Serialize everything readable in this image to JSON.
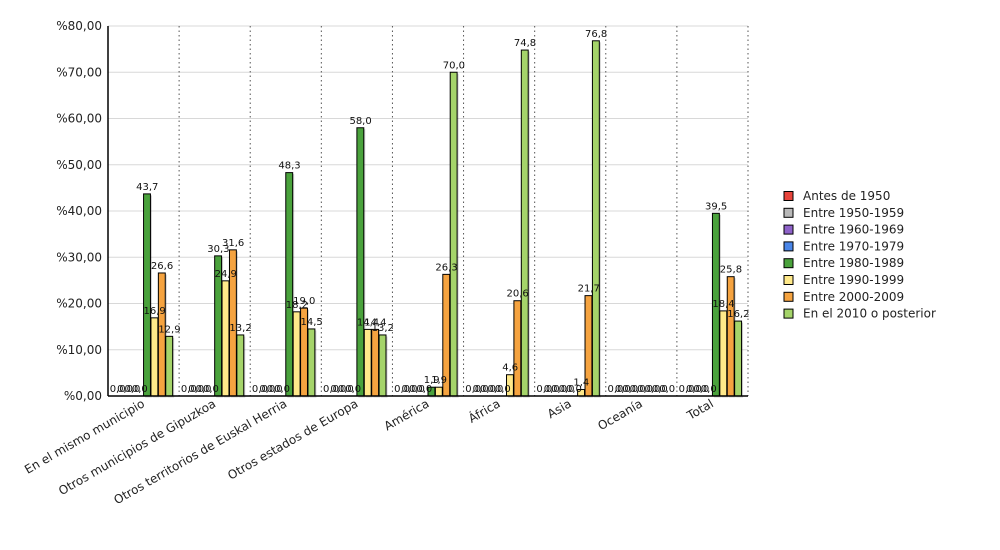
{
  "chart_data": {
    "type": "bar",
    "title": "",
    "xlabel": "",
    "ylabel": "",
    "ylim": [
      0,
      80
    ],
    "yticks": [
      "%0,00",
      "%10,00",
      "%20,00",
      "%30,00",
      "%40,00",
      "%50,00",
      "%60,00",
      "%70,00",
      "%80,00"
    ],
    "grid": true,
    "legend_position": "right",
    "categories": [
      "En el mismo municipio",
      "Otros municipios de Gipuzkoa",
      "Otros territorios de Euskal Herria",
      "Otros estados de Europa",
      "América",
      "África",
      "Asia",
      "Oceanía",
      "Total"
    ],
    "series": [
      {
        "name": "Antes de 1950",
        "color": "#e8453c",
        "values": [
          0.0,
          0.0,
          0.0,
          0.0,
          0.0,
          0.0,
          0.0,
          0.0,
          0.0
        ],
        "labels": [
          "0,0",
          "0,0",
          "0,0",
          "0,0",
          "0,0",
          "0,0",
          "0,0",
          "0,0",
          "0,0"
        ]
      },
      {
        "name": "Entre 1950-1959",
        "color": "#b9b9b9",
        "values": [
          0.0,
          0.0,
          0.0,
          0.0,
          0.0,
          0.0,
          0.0,
          0.0,
          0.0
        ],
        "labels": [
          "0,0",
          "0,0",
          "0,0",
          "0,0",
          "0,0",
          "0,0",
          "0,0",
          "0,0",
          "0,0"
        ]
      },
      {
        "name": "Entre 1960-1969",
        "color": "#8e62c9",
        "values": [
          0.0,
          0.0,
          0.0,
          0.0,
          0.0,
          0.0,
          0.0,
          0.0,
          0.0
        ],
        "labels": [
          "0,0",
          "0,0",
          "0,0",
          "0,0",
          "0,0",
          "0,0",
          "0,0",
          "0,0",
          "0,0"
        ]
      },
      {
        "name": "Entre 1970-1979",
        "color": "#4a86e8",
        "values": [
          0.0,
          0.0,
          0.0,
          0.0,
          0.0,
          0.0,
          0.0,
          0.0,
          0.0
        ],
        "labels": [
          "0,0",
          "0,0",
          "0,0",
          "0,0",
          "0,0",
          "0,0",
          "0,0",
          "0,0",
          "0,0"
        ]
      },
      {
        "name": "Entre 1980-1989",
        "color": "#4aa23c",
        "values": [
          43.7,
          30.3,
          48.3,
          58.0,
          1.9,
          0.0,
          0.0,
          0.0,
          39.5
        ],
        "labels": [
          "43,7",
          "30,3",
          "48,3",
          "58,0",
          "1,9",
          "0,0",
          "0,0",
          "0,0",
          "39,5"
        ]
      },
      {
        "name": "Entre 1990-1999",
        "color": "#ffe98a",
        "values": [
          16.9,
          24.9,
          18.2,
          14.4,
          1.9,
          4.6,
          1.4,
          0.0,
          18.4
        ],
        "labels": [
          "16,9",
          "24,9",
          "18,2",
          "14,4",
          "1,9",
          "4,6",
          "1,4",
          "0,0",
          "18,4"
        ]
      },
      {
        "name": "Entre 2000-2009",
        "color": "#f5a340",
        "values": [
          26.6,
          31.6,
          19.0,
          14.4,
          26.3,
          20.6,
          21.7,
          0.0,
          25.8
        ],
        "labels": [
          "26,6",
          "31,6",
          "19,0",
          "14,4",
          "26,3",
          "20,6",
          "21,7",
          "0,0",
          "25,8"
        ]
      },
      {
        "name": "En el 2010 o posterior",
        "color": "#a5d46a",
        "values": [
          12.9,
          13.2,
          14.5,
          13.2,
          70.0,
          74.8,
          76.8,
          0.0,
          16.2
        ],
        "labels": [
          "12,9",
          "13,2",
          "14,5",
          "13,2",
          "70,0",
          "74,8",
          "76,8",
          "0,0",
          "16,2"
        ]
      }
    ]
  }
}
